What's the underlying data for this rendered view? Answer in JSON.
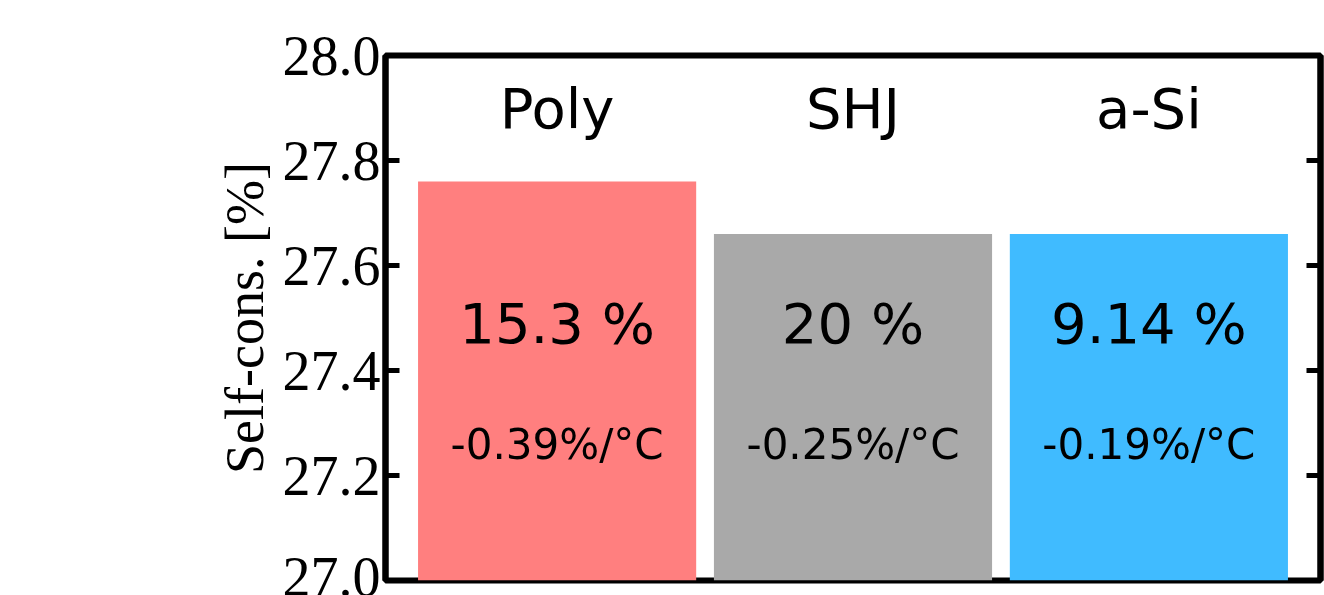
{
  "chart_data": {
    "type": "bar",
    "ylabel": "Self-cons. [%]",
    "categories": [
      "Poly",
      "SHJ",
      "a-Si"
    ],
    "values": [
      27.76,
      27.66,
      27.66
    ],
    "colors": [
      "#ff7f7f",
      "#a9a9a9",
      "#40bbff"
    ],
    "ylim": [
      27.0,
      28.0
    ],
    "yticks": [
      {
        "value": 27.0,
        "label": "27.0"
      },
      {
        "value": 27.2,
        "label": "27.2"
      },
      {
        "value": 27.4,
        "label": "27.4"
      },
      {
        "value": 27.6,
        "label": "27.6"
      },
      {
        "value": 27.8,
        "label": "27.8"
      },
      {
        "value": 28.0,
        "label": "28.0"
      }
    ],
    "grid": false,
    "annotations": [
      "15.3 %",
      "-0.39%/°C",
      "20 %",
      "-0.25%/°C",
      "9.14 %",
      "-0.19%/°C"
    ]
  }
}
